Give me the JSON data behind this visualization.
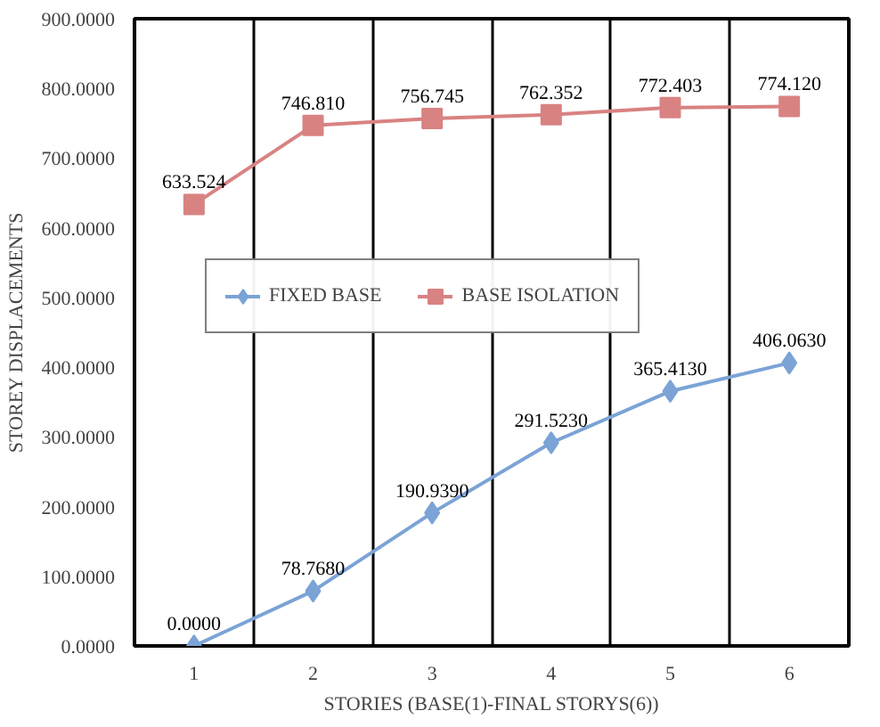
{
  "chart_data": {
    "type": "line",
    "xlabel": "STORIES (BASE(1)-FINAL STORYS(6))",
    "ylabel": "STOREY DISPLACEMENTS",
    "categories": [
      "1",
      "2",
      "3",
      "4",
      "5",
      "6"
    ],
    "series": [
      {
        "name": "FIXED BASE",
        "color": "#7ba3d6",
        "marker": "diamond",
        "values": [
          0.0,
          78.768,
          190.939,
          291.523,
          365.413,
          406.063
        ],
        "value_labels": [
          "0.0000",
          "78.7680",
          "190.9390",
          "291.5230",
          "365.4130",
          "406.0630"
        ]
      },
      {
        "name": "BASE ISOLATION",
        "color": "#d98282",
        "marker": "square",
        "values": [
          633.524,
          746.81,
          756.745,
          762.352,
          772.403,
          774.12
        ],
        "value_labels": [
          "633.524",
          "746.810",
          "756.745",
          "762.352",
          "772.403",
          "774.120"
        ]
      }
    ],
    "ylim": [
      0,
      900
    ],
    "yticks": [
      {
        "value": 0,
        "label": "0.0000"
      },
      {
        "value": 100,
        "label": "100.0000"
      },
      {
        "value": 200,
        "label": "200.0000"
      },
      {
        "value": 300,
        "label": "300.0000"
      },
      {
        "value": 400,
        "label": "400.0000"
      },
      {
        "value": 500,
        "label": "500.0000"
      },
      {
        "value": 600,
        "label": "600.0000"
      },
      {
        "value": 700,
        "label": "700.0000"
      },
      {
        "value": 800,
        "label": "800.0000"
      },
      {
        "value": 900,
        "label": "900.0000"
      }
    ],
    "grid": "x",
    "legend": "top",
    "line_style": "solid"
  }
}
